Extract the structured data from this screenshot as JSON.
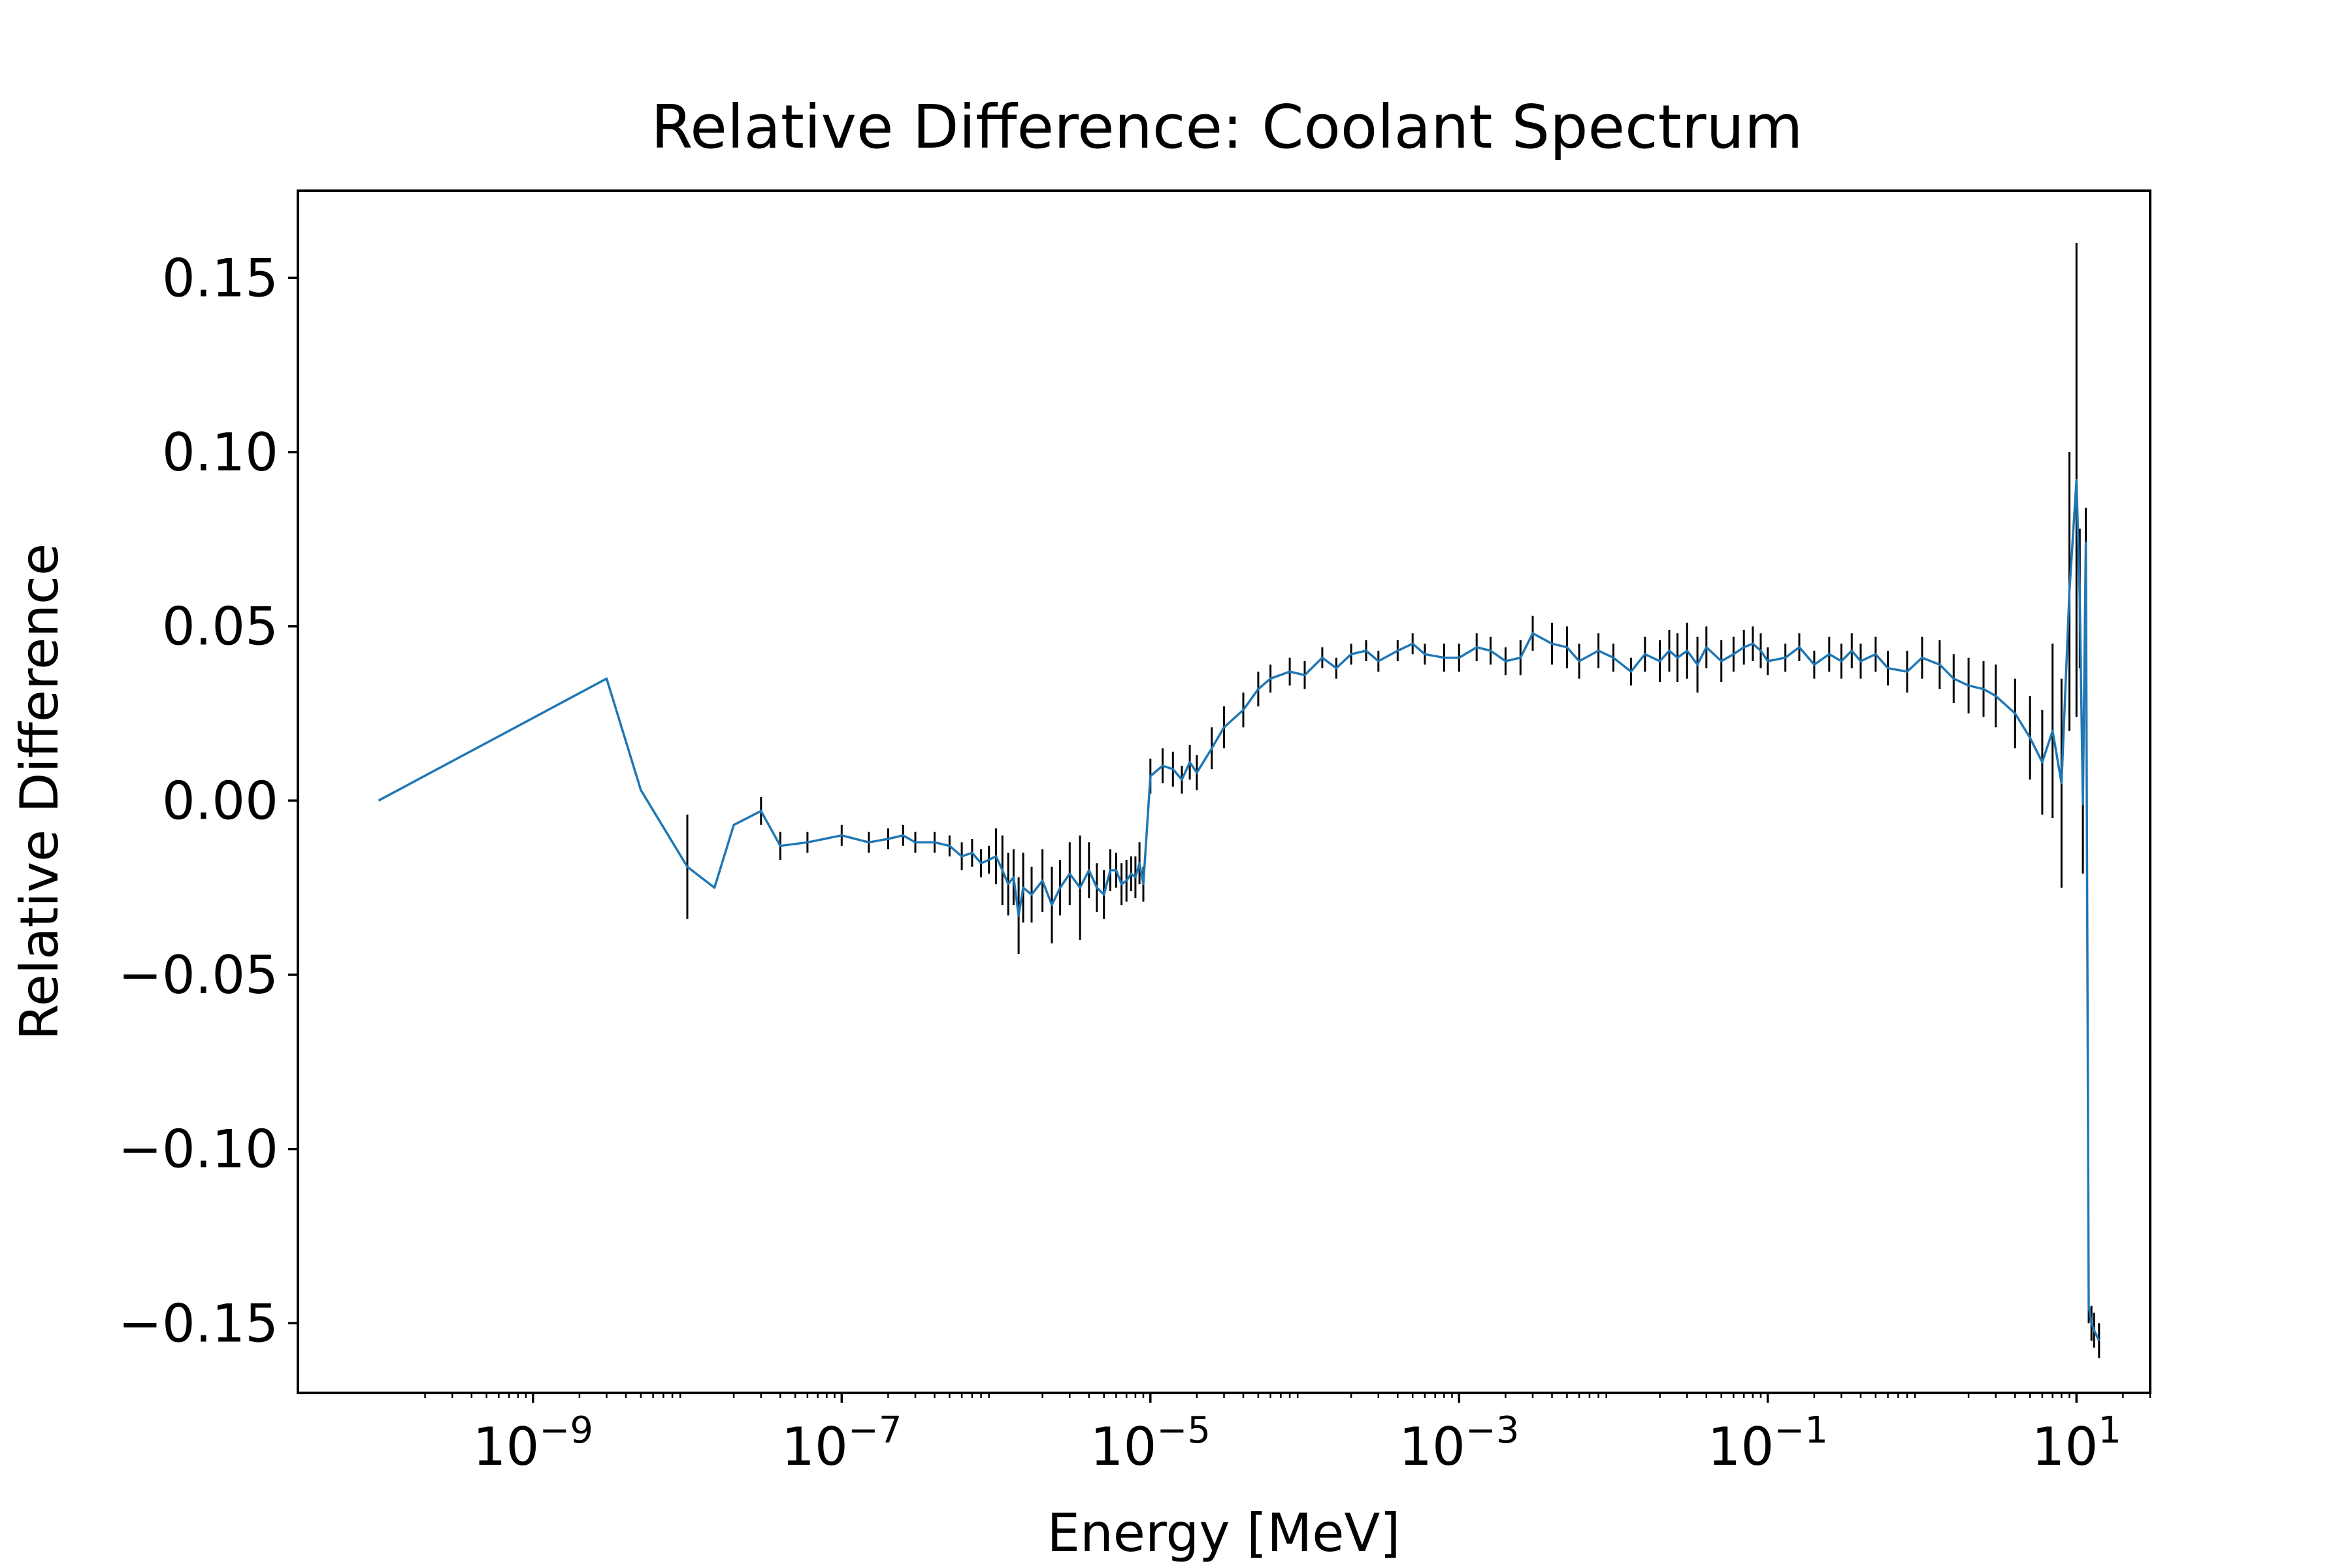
{
  "chart_data": {
    "type": "line",
    "title": "Relative Difference: Coolant Spectrum",
    "xlabel": "Energy [MeV]",
    "ylabel": "Relative Difference",
    "xscale": "log",
    "xlim": [
      3e-11,
      30
    ],
    "ylim": [
      -0.17,
      0.175
    ],
    "grid": false,
    "legend": "none",
    "colors": {
      "line": "#1f77b4",
      "errorbar": "#000000",
      "axes": "#000000"
    },
    "x_ticks": [
      {
        "value": 1e-09,
        "base": "10",
        "exp": "−9"
      },
      {
        "value": 1e-07,
        "base": "10",
        "exp": "−7"
      },
      {
        "value": 1e-05,
        "base": "10",
        "exp": "−5"
      },
      {
        "value": 0.001,
        "base": "10",
        "exp": "−3"
      },
      {
        "value": 0.1,
        "base": "10",
        "exp": "−1"
      },
      {
        "value": 10,
        "base": "10",
        "exp": "1"
      }
    ],
    "y_ticks": [
      {
        "value": 0.15,
        "label": "0.15"
      },
      {
        "value": 0.1,
        "label": "0.10"
      },
      {
        "value": 0.05,
        "label": "0.05"
      },
      {
        "value": 0.0,
        "label": "0.00"
      },
      {
        "value": -0.05,
        "label": "−0.05"
      },
      {
        "value": -0.1,
        "label": "−0.10"
      },
      {
        "value": -0.15,
        "label": "−0.15"
      }
    ],
    "series": [
      {
        "x": [
          1e-10,
          3e-09,
          5e-09,
          1e-08,
          1.5e-08,
          2e-08,
          3e-08,
          4e-08,
          6e-08,
          1e-07,
          1.5e-07,
          2e-07,
          2.5e-07,
          3e-07,
          4e-07,
          5e-07,
          6e-07,
          7e-07,
          8e-07,
          9e-07,
          1e-06,
          1.1e-06,
          1.2e-06,
          1.3e-06,
          1.4e-06,
          1.5e-06,
          1.7e-06,
          2e-06,
          2.3e-06,
          2.6e-06,
          3e-06,
          3.5e-06,
          4e-06,
          4.5e-06,
          5e-06,
          5.5e-06,
          6e-06,
          6.5e-06,
          7e-06,
          7.5e-06,
          8e-06,
          8.5e-06,
          9e-06,
          1e-05,
          1.2e-05,
          1.4e-05,
          1.6e-05,
          1.8e-05,
          2e-05,
          2.5e-05,
          3e-05,
          4e-05,
          5e-05,
          6e-05,
          8e-05,
          0.0001,
          0.00013,
          0.00016,
          0.0002,
          0.00025,
          0.0003,
          0.0004,
          0.0005,
          0.0006,
          0.0008,
          0.001,
          0.0013,
          0.0016,
          0.002,
          0.0025,
          0.003,
          0.004,
          0.005,
          0.006,
          0.008,
          0.01,
          0.013,
          0.016,
          0.02,
          0.023,
          0.026,
          0.03,
          0.035,
          0.04,
          0.05,
          0.06,
          0.07,
          0.08,
          0.09,
          0.1,
          0.13,
          0.16,
          0.2,
          0.25,
          0.3,
          0.35,
          0.4,
          0.5,
          0.6,
          0.8,
          1.0,
          1.3,
          1.6,
          2.0,
          2.5,
          3.0,
          4.0,
          5.0,
          6.0,
          7.0,
          8.0,
          9.0,
          10.0,
          10.5,
          11.0,
          11.5,
          12.0,
          12.5,
          13.0,
          14.0
        ],
        "y": [
          0.0,
          0.035,
          0.003,
          -0.019,
          -0.025,
          -0.007,
          -0.003,
          -0.013,
          -0.012,
          -0.01,
          -0.012,
          -0.011,
          -0.01,
          -0.012,
          -0.012,
          -0.013,
          -0.016,
          -0.015,
          -0.018,
          -0.017,
          -0.016,
          -0.02,
          -0.024,
          -0.022,
          -0.033,
          -0.025,
          -0.027,
          -0.023,
          -0.03,
          -0.025,
          -0.021,
          -0.025,
          -0.02,
          -0.025,
          -0.027,
          -0.02,
          -0.02,
          -0.024,
          -0.023,
          -0.021,
          -0.022,
          -0.018,
          -0.024,
          0.007,
          0.01,
          0.009,
          0.006,
          0.011,
          0.008,
          0.015,
          0.021,
          0.026,
          0.032,
          0.035,
          0.037,
          0.036,
          0.041,
          0.038,
          0.042,
          0.043,
          0.04,
          0.043,
          0.045,
          0.042,
          0.041,
          0.041,
          0.044,
          0.043,
          0.04,
          0.041,
          0.048,
          0.045,
          0.044,
          0.04,
          0.043,
          0.041,
          0.037,
          0.042,
          0.04,
          0.043,
          0.041,
          0.043,
          0.039,
          0.044,
          0.04,
          0.042,
          0.044,
          0.045,
          0.043,
          0.04,
          0.041,
          0.044,
          0.039,
          0.042,
          0.04,
          0.043,
          0.04,
          0.042,
          0.038,
          0.037,
          0.041,
          0.039,
          0.035,
          0.033,
          0.032,
          0.03,
          0.025,
          0.018,
          0.011,
          0.02,
          0.005,
          0.06,
          0.092,
          0.058,
          -0.001,
          0.074,
          -0.145,
          -0.15,
          -0.152,
          -0.155
        ],
        "yerr": [
          0.0,
          0.0,
          0.0,
          0.015,
          0.0,
          0.0,
          0.004,
          0.004,
          0.003,
          0.003,
          0.003,
          0.003,
          0.003,
          0.003,
          0.003,
          0.003,
          0.004,
          0.004,
          0.004,
          0.004,
          0.008,
          0.01,
          0.009,
          0.008,
          0.011,
          0.01,
          0.008,
          0.009,
          0.011,
          0.008,
          0.009,
          0.015,
          0.008,
          0.007,
          0.007,
          0.006,
          0.005,
          0.006,
          0.006,
          0.005,
          0.006,
          0.006,
          0.005,
          0.005,
          0.005,
          0.005,
          0.004,
          0.005,
          0.005,
          0.006,
          0.006,
          0.005,
          0.005,
          0.004,
          0.004,
          0.004,
          0.003,
          0.003,
          0.003,
          0.003,
          0.003,
          0.003,
          0.003,
          0.003,
          0.004,
          0.004,
          0.004,
          0.004,
          0.004,
          0.005,
          0.005,
          0.006,
          0.006,
          0.005,
          0.005,
          0.004,
          0.004,
          0.005,
          0.006,
          0.006,
          0.007,
          0.008,
          0.008,
          0.006,
          0.006,
          0.005,
          0.005,
          0.005,
          0.005,
          0.004,
          0.004,
          0.004,
          0.004,
          0.005,
          0.005,
          0.005,
          0.005,
          0.005,
          0.005,
          0.006,
          0.006,
          0.007,
          0.007,
          0.008,
          0.008,
          0.009,
          0.01,
          0.012,
          0.015,
          0.025,
          0.03,
          0.04,
          0.068,
          0.02,
          0.02,
          0.01,
          0.005,
          0.005,
          0.005,
          0.005
        ]
      }
    ]
  }
}
